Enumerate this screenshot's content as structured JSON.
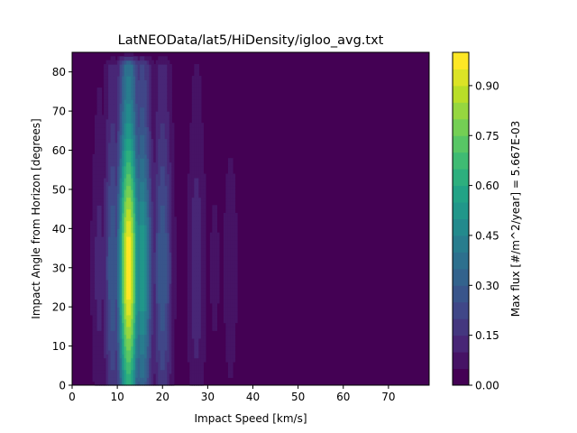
{
  "chart_data": {
    "type": "heatmap",
    "title": "LatNEOData/lat5/HiDensity/igloo_avg.txt",
    "xlabel": "Impact Speed [km/s]",
    "ylabel": "Impact Angle from Horizon [degrees]",
    "xlim": [
      0,
      79
    ],
    "ylim": [
      0,
      85
    ],
    "x_ticks": [
      "0",
      "10",
      "20",
      "30",
      "40",
      "50",
      "60",
      "70"
    ],
    "y_ticks": [
      "0",
      "10",
      "20",
      "30",
      "40",
      "50",
      "60",
      "70",
      "80"
    ],
    "colorbar": {
      "label": "Max flux [#/m^2/year] = 5.667E-03",
      "range": [
        0,
        1
      ],
      "levels": 20,
      "ticks": [
        "0.00",
        "0.15",
        "0.30",
        "0.45",
        "0.60",
        "0.75",
        "0.90"
      ],
      "colormap": [
        "#440154",
        "#482475",
        "#414487",
        "#355f8d",
        "#2a788e",
        "#21918c",
        "#22a884",
        "#44bf70",
        "#7ad151",
        "#bddf26",
        "#fde725"
      ]
    },
    "speed_peaks": [
      {
        "speed": 12.5,
        "relative_flux": 1.0
      },
      {
        "speed": 15.5,
        "relative_flux": 0.55
      },
      {
        "speed": 9.0,
        "relative_flux": 0.3
      },
      {
        "speed": 20.0,
        "relative_flux": 0.3
      },
      {
        "speed": 6.0,
        "relative_flux": 0.12
      },
      {
        "speed": 27.5,
        "relative_flux": 0.14
      },
      {
        "speed": 31.5,
        "relative_flux": 0.06
      },
      {
        "speed": 35.0,
        "relative_flux": 0.08
      }
    ],
    "grid": false,
    "legend": "colorbar-right"
  }
}
